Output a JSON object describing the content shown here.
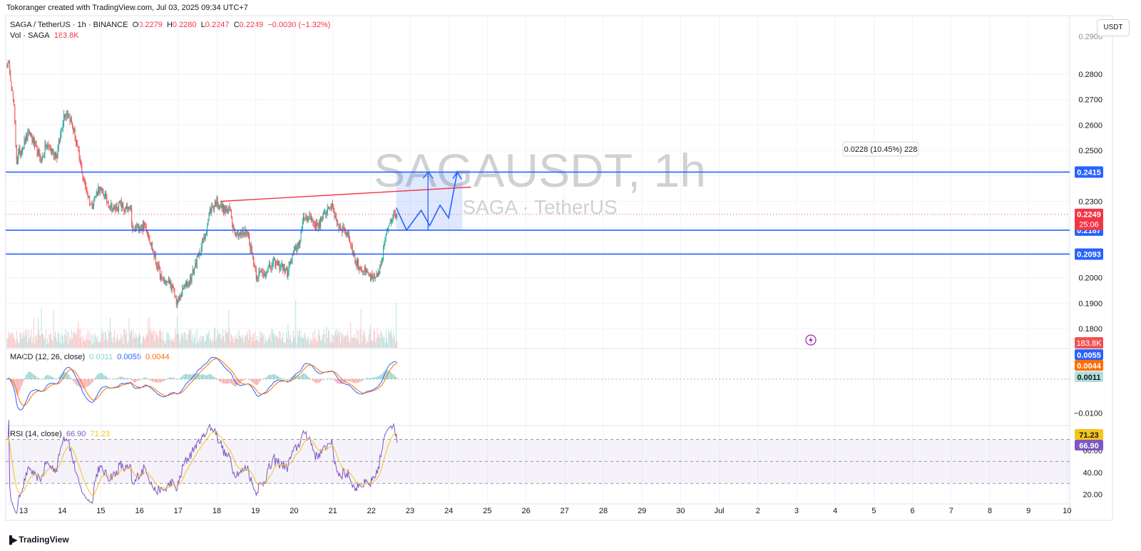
{
  "credit": "Tokoranger created with TradingView.com, Jul 03, 2025 09:34 UTC+7",
  "header": {
    "symbol": "SAGA / TetherUS · 1h · BINANCE",
    "o_lbl": "O",
    "o": "0.2279",
    "h_lbl": "H",
    "h": "0.2280",
    "l_lbl": "L",
    "l": "0.2247",
    "c_lbl": "C",
    "c": "0.2249",
    "change": "−0.0030 (−1.32%)",
    "vol_label": "Vol · SAGA",
    "vol": "183.8K"
  },
  "watermark": {
    "line1": "SAGAUSDT, 1h",
    "line2": "SAGA · TetherUS"
  },
  "currency_button": "USDT",
  "logo": "TradingView",
  "colors": {
    "up": "#26a69a",
    "down": "#ef5350",
    "level": "#2962ff",
    "trend": "#f23645",
    "macd": "#2962ff",
    "signal": "#ff6d00",
    "rsi": "#7e57c2",
    "rsi_ma": "#f5c518"
  },
  "chart_data": [
    {
      "type": "candlestick",
      "title": "SAGA / TetherUS · 1h · BINANCE",
      "x_ticks": [
        "13",
        "14",
        "15",
        "16",
        "17",
        "18",
        "19",
        "20",
        "21",
        "22",
        "23",
        "24",
        "25",
        "26",
        "27",
        "28",
        "29",
        "30",
        "Jul",
        "2",
        "3",
        "4",
        "5",
        "6",
        "7",
        "8",
        "9",
        "10"
      ],
      "y_ticks": [
        "0.2800",
        "0.2700",
        "0.2600",
        "0.2500",
        "0.2300",
        "0.2000",
        "0.1900",
        "0.1800"
      ],
      "ylim": [
        0.1725,
        0.2945
      ],
      "anchors": [
        [
          0,
          0.284
        ],
        [
          3,
          0.282
        ],
        [
          8,
          0.266
        ],
        [
          11,
          0.246
        ],
        [
          14,
          0.249
        ],
        [
          26,
          0.257
        ],
        [
          34,
          0.25
        ],
        [
          40,
          0.246
        ],
        [
          45,
          0.252
        ],
        [
          58,
          0.248
        ],
        [
          66,
          0.264
        ],
        [
          71,
          0.265
        ],
        [
          78,
          0.257
        ],
        [
          90,
          0.237
        ],
        [
          98,
          0.228
        ],
        [
          106,
          0.235
        ],
        [
          112,
          0.233
        ],
        [
          118,
          0.229
        ],
        [
          126,
          0.227
        ],
        [
          132,
          0.229
        ],
        [
          136,
          0.227
        ],
        [
          144,
          0.226
        ],
        [
          146,
          0.218
        ],
        [
          152,
          0.22
        ],
        [
          162,
          0.22
        ],
        [
          170,
          0.21
        ],
        [
          180,
          0.199
        ],
        [
          190,
          0.198
        ],
        [
          198,
          0.19
        ],
        [
          206,
          0.196
        ],
        [
          214,
          0.2
        ],
        [
          222,
          0.208
        ],
        [
          230,
          0.216
        ],
        [
          236,
          0.226
        ],
        [
          244,
          0.23
        ],
        [
          252,
          0.227
        ],
        [
          260,
          0.226
        ],
        [
          264,
          0.219
        ],
        [
          272,
          0.217
        ],
        [
          280,
          0.218
        ],
        [
          290,
          0.201
        ],
        [
          300,
          0.202
        ],
        [
          312,
          0.206
        ],
        [
          322,
          0.204
        ],
        [
          326,
          0.202
        ],
        [
          332,
          0.208
        ],
        [
          340,
          0.214
        ],
        [
          346,
          0.224
        ],
        [
          352,
          0.224
        ],
        [
          360,
          0.22
        ],
        [
          368,
          0.224
        ],
        [
          376,
          0.229
        ],
        [
          380,
          0.226
        ],
        [
          386,
          0.22
        ],
        [
          392,
          0.219
        ],
        [
          398,
          0.216
        ],
        [
          406,
          0.206
        ],
        [
          414,
          0.203
        ],
        [
          420,
          0.201
        ],
        [
          426,
          0.199
        ],
        [
          430,
          0.2
        ],
        [
          436,
          0.206
        ],
        [
          442,
          0.219
        ],
        [
          446,
          0.223
        ],
        [
          452,
          0.225
        ]
      ],
      "levels": [
        {
          "price": 0.2415,
          "label": "0.2415"
        },
        {
          "price": 0.2187,
          "label": "0.2187"
        },
        {
          "price": 0.2093,
          "label": "0.2093"
        }
      ],
      "last_price": {
        "value": 0.2249,
        "label": "0.2249",
        "countdown": "25:06"
      },
      "trendline": [
        [
          248,
          0.23
        ],
        [
          540,
          0.2356
        ]
      ],
      "projection": {
        "range_label": "0.0228 (10.45%) 228",
        "box": {
          "start": 453,
          "end": 530,
          "low": 0.2187,
          "high": 0.2415
        },
        "path": [
          [
            453,
            0.2275
          ],
          [
            465,
            0.2187
          ],
          [
            482,
            0.2265
          ],
          [
            492,
            0.2205
          ],
          [
            504,
            0.2285
          ],
          [
            514,
            0.2235
          ],
          [
            524,
            0.2415
          ]
        ],
        "vertical_arrow": {
          "bar": 490,
          "from": 0.2187,
          "to": 0.2415
        }
      },
      "volume": {
        "last_label": "183.8K"
      }
    },
    {
      "type": "line",
      "title": "MACD (12, 26, close)",
      "series": [
        {
          "name": "Histogram",
          "last": "0.0011"
        },
        {
          "name": "MACD",
          "last": "0.0055"
        },
        {
          "name": "Signal",
          "last": "0.0044"
        }
      ],
      "y_ticks": [
        "−0.0100"
      ],
      "ylim": [
        -0.0135,
        0.0088
      ]
    },
    {
      "type": "line",
      "title": "RSI (14, close)",
      "series": [
        {
          "name": "RSI",
          "last": "66.90"
        },
        {
          "name": "RSI MA",
          "last": "71.23"
        }
      ],
      "y_ticks": [
        "60.00",
        "40.00",
        "20.00"
      ],
      "bands": [
        30,
        50,
        70
      ],
      "ylim": [
        12,
        82
      ]
    }
  ]
}
